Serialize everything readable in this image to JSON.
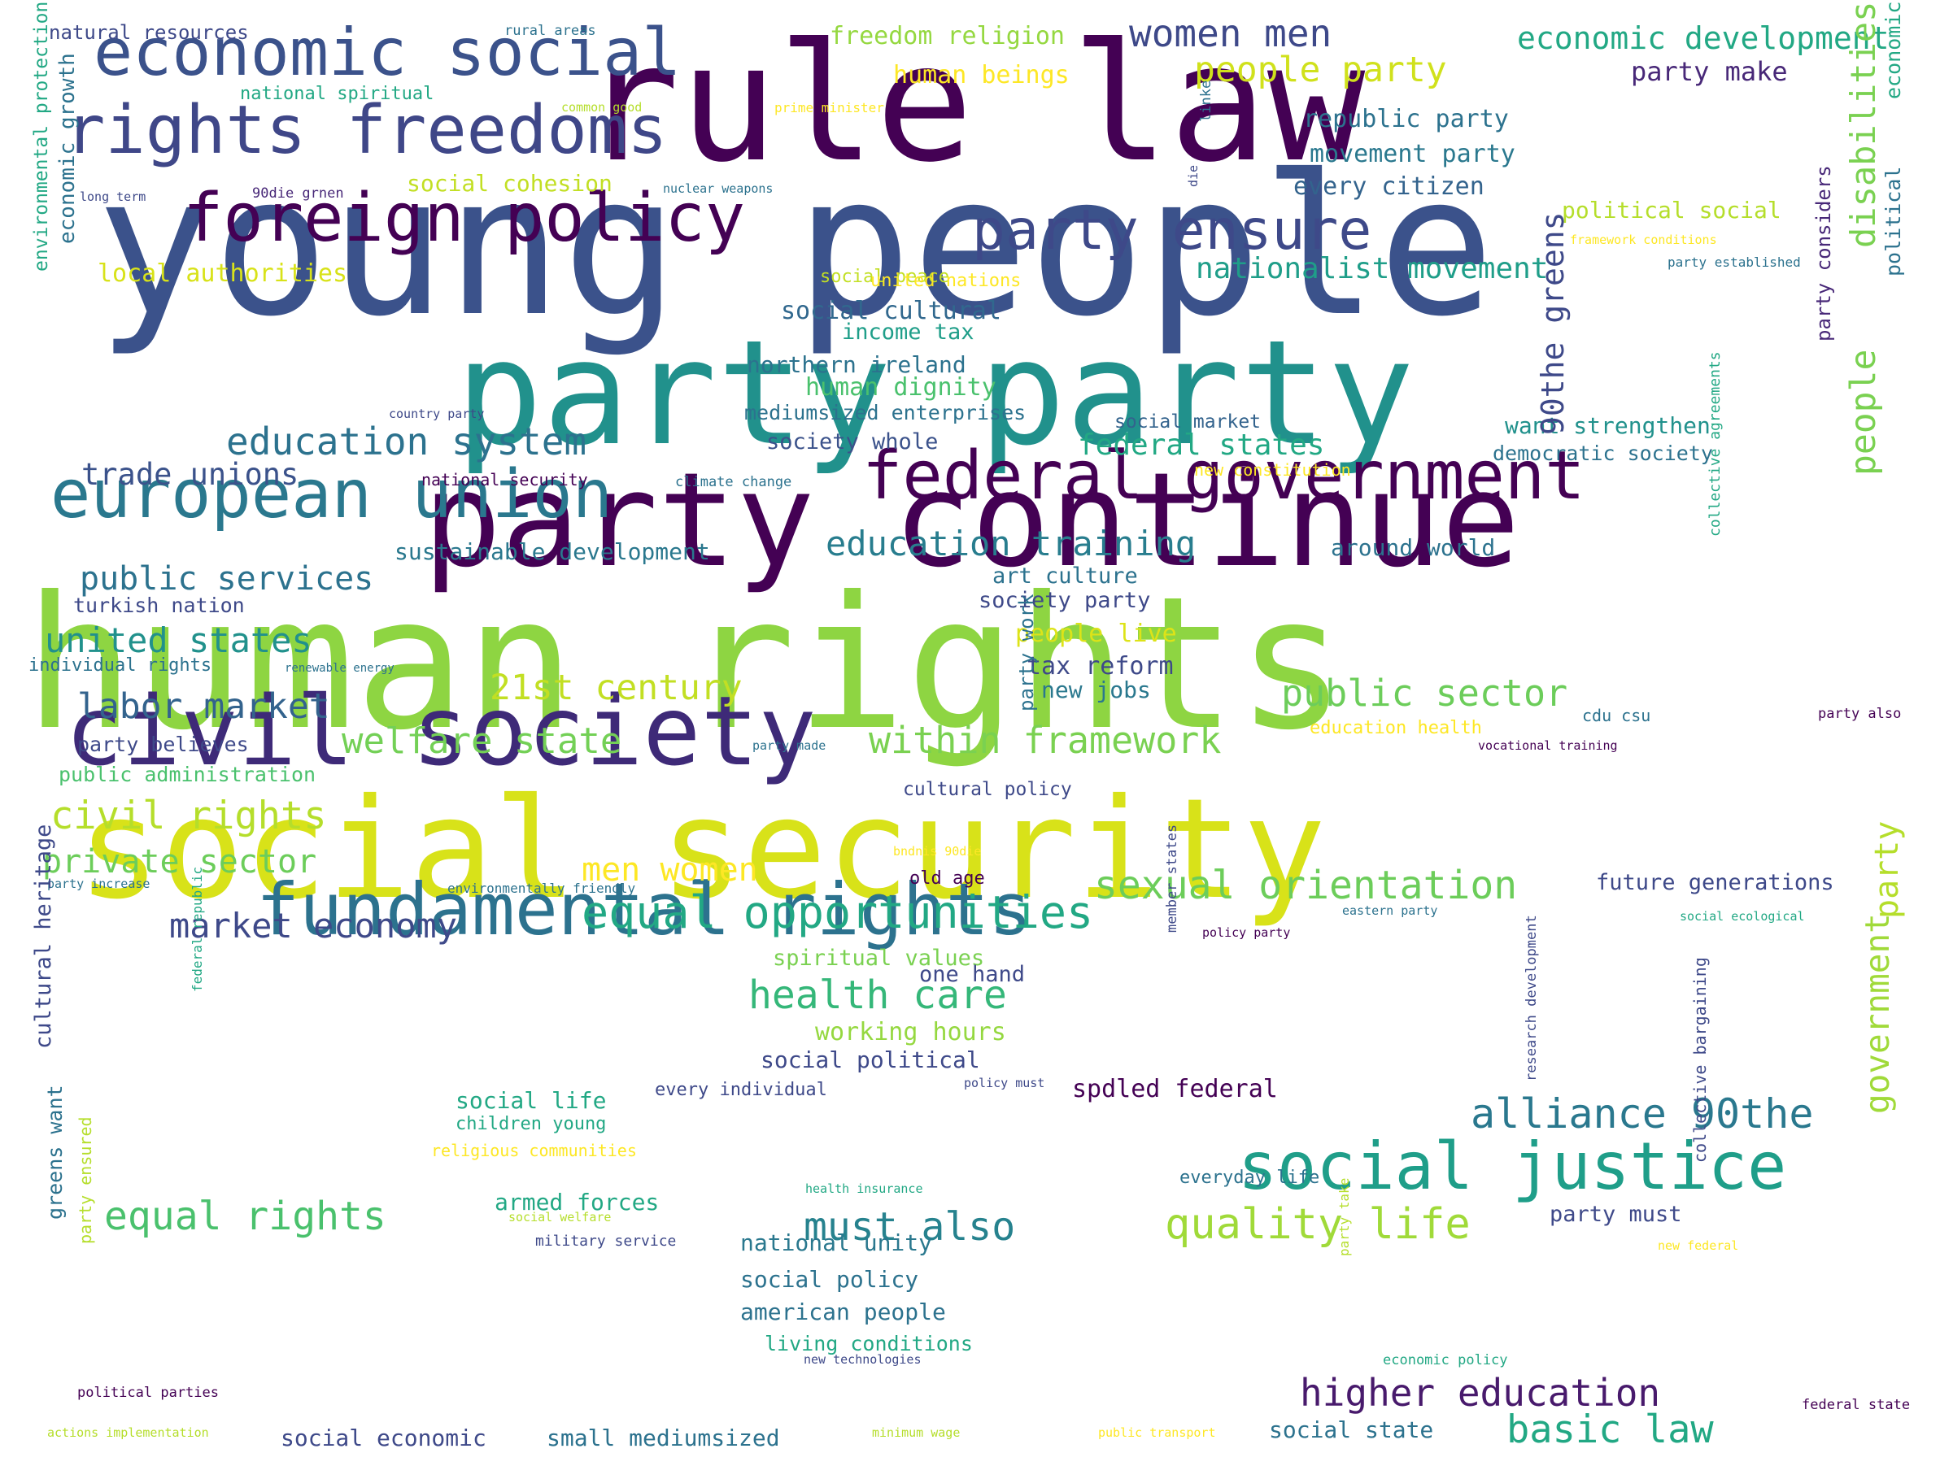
{
  "palette": [
    "#440154",
    "#482475",
    "#414487",
    "#355f8d",
    "#2a788e",
    "#21918c",
    "#22a884",
    "#44bf70",
    "#7ad151",
    "#bddf26",
    "#fde725"
  ],
  "words": [
    {
      "t": "young people",
      "c": "#3b528b"
    },
    {
      "t": "human rights",
      "c": "#8ed542"
    },
    {
      "t": "social security",
      "c": "#d8e219"
    },
    {
      "t": "rule law",
      "c": "#440154"
    },
    {
      "t": "party party",
      "c": "#21918c"
    },
    {
      "t": "party continue",
      "c": "#440154"
    },
    {
      "t": "civil society",
      "c": "#3e2a78"
    },
    {
      "t": "fundamental rights",
      "c": "#2c728e"
    },
    {
      "t": "rights freedoms",
      "c": "#3f4788"
    },
    {
      "t": "economic social",
      "c": "#3b528b"
    },
    {
      "t": "foreign policy",
      "c": "#440154"
    },
    {
      "t": "european union",
      "c": "#2a788e"
    },
    {
      "t": "federal government",
      "c": "#440154"
    },
    {
      "t": "party ensure",
      "c": "#3e4989"
    },
    {
      "t": "social justice",
      "c": "#1f9e89"
    },
    {
      "t": "education system",
      "c": "#2c728e"
    },
    {
      "t": "welfare state",
      "c": "#73d056"
    },
    {
      "t": "within framework",
      "c": "#7ad151"
    },
    {
      "t": "21st century",
      "c": "#c2df23"
    },
    {
      "t": "equal opportunities",
      "c": "#22a884"
    },
    {
      "t": "market economy",
      "c": "#3e4989"
    },
    {
      "t": "sexual orientation",
      "c": "#6ccd5a"
    },
    {
      "t": "alliance 90the",
      "c": "#2a788e"
    },
    {
      "t": "quality life",
      "c": "#a0da39"
    },
    {
      "t": "equal rights",
      "c": "#4ac16d"
    },
    {
      "t": "must also",
      "c": "#26828e"
    },
    {
      "t": "higher education",
      "c": "#481a6c"
    },
    {
      "t": "basic law",
      "c": "#22a884"
    },
    {
      "t": "public sector",
      "c": "#6ccd5a"
    },
    {
      "t": "public services",
      "c": "#2c728e"
    },
    {
      "t": "united states",
      "c": "#21918c"
    },
    {
      "t": "labor market",
      "c": "#33638d"
    },
    {
      "t": "civil rights",
      "c": "#b5de2b"
    },
    {
      "t": "private sector",
      "c": "#6ccd5a"
    },
    {
      "t": "health care",
      "c": "#35b779"
    },
    {
      "t": "men women",
      "c": "#fde725"
    },
    {
      "t": "education training",
      "c": "#287d8e"
    },
    {
      "t": "trade unions",
      "c": "#3b528b"
    },
    {
      "t": "women men",
      "c": "#3e4989"
    },
    {
      "t": "people party",
      "c": "#d0e11c"
    },
    {
      "t": "economic development",
      "c": "#22a884"
    },
    {
      "t": "freedom religion",
      "c": "#95d840"
    },
    {
      "t": "human beings",
      "c": "#fde725"
    },
    {
      "t": "party make",
      "c": "#482878"
    },
    {
      "t": "republic party",
      "c": "#2c728e"
    },
    {
      "t": "movement party",
      "c": "#2a788e"
    },
    {
      "t": "every citizen",
      "c": "#33638d"
    },
    {
      "t": "nationalist movement",
      "c": "#1f9e89"
    },
    {
      "t": "federal states",
      "c": "#22a884"
    },
    {
      "t": "want strengthen",
      "c": "#21918c"
    },
    {
      "t": "democratic society",
      "c": "#2c728e"
    },
    {
      "t": "social cohesion",
      "c": "#c2df23"
    },
    {
      "t": "local authorities",
      "c": "#d8e219"
    },
    {
      "t": "political social",
      "c": "#b5de2b"
    },
    {
      "t": "social cultural",
      "c": "#31688e"
    },
    {
      "t": "income tax",
      "c": "#1f9e89"
    },
    {
      "t": "northern ireland",
      "c": "#2c728e"
    },
    {
      "t": "human dignity",
      "c": "#4ac16d"
    },
    {
      "t": "mediumsized enterprises",
      "c": "#2c728e"
    },
    {
      "t": "society whole",
      "c": "#3b528b"
    },
    {
      "t": "social market",
      "c": "#33638d"
    },
    {
      "t": "sustainable development",
      "c": "#2a788e"
    },
    {
      "t": "around world",
      "c": "#2c728e"
    },
    {
      "t": "art culture",
      "c": "#2c728e"
    },
    {
      "t": "society party",
      "c": "#3e4989"
    },
    {
      "t": "people live",
      "c": "#dde318"
    },
    {
      "t": "tax reform",
      "c": "#3e4989"
    },
    {
      "t": "new jobs",
      "c": "#2a788e"
    },
    {
      "t": "turkish nation",
      "c": "#3e4989"
    },
    {
      "t": "individual rights",
      "c": "#2c728e"
    },
    {
      "t": "party believes",
      "c": "#3e4989"
    },
    {
      "t": "public administration",
      "c": "#4ac16d"
    },
    {
      "t": "cultural policy",
      "c": "#3e4989"
    },
    {
      "t": "future generations",
      "c": "#3e4989"
    },
    {
      "t": "old age",
      "c": "#440154"
    },
    {
      "t": "spiritual values",
      "c": "#7ad151"
    },
    {
      "t": "one hand",
      "c": "#3e4989"
    },
    {
      "t": "working hours",
      "c": "#95d840"
    },
    {
      "t": "social political",
      "c": "#3e4989"
    },
    {
      "t": "social life",
      "c": "#22a884"
    },
    {
      "t": "every individual",
      "c": "#3e4989"
    },
    {
      "t": "spdled federal",
      "c": "#440154"
    },
    {
      "t": "children young",
      "c": "#22a884"
    },
    {
      "t": "everyday life",
      "c": "#2c728e"
    },
    {
      "t": "armed forces",
      "c": "#22a884"
    },
    {
      "t": "national unity",
      "c": "#2a788e"
    },
    {
      "t": "party must",
      "c": "#3e4989"
    },
    {
      "t": "social policy",
      "c": "#2c728e"
    },
    {
      "t": "american people",
      "c": "#2c728e"
    },
    {
      "t": "living conditions",
      "c": "#22a884"
    },
    {
      "t": "social economic",
      "c": "#3e4989"
    },
    {
      "t": "small mediumsized",
      "c": "#2c728e"
    },
    {
      "t": "social state",
      "c": "#2c728e"
    },
    {
      "t": "natural resources",
      "c": "#3e4989"
    },
    {
      "t": "rural areas",
      "c": "#2c728e"
    },
    {
      "t": "national spiritual",
      "c": "#22a884"
    },
    {
      "t": "common good",
      "c": "#b5de2b"
    },
    {
      "t": "prime minister",
      "c": "#fde725"
    },
    {
      "t": "long term",
      "c": "#3e4989"
    },
    {
      "t": "90die grnen",
      "c": "#482878"
    },
    {
      "t": "nuclear weapons",
      "c": "#2c728e"
    },
    {
      "t": "social peace",
      "c": "#c2df23"
    },
    {
      "t": "united nations",
      "c": "#fde725"
    },
    {
      "t": "party established",
      "c": "#2c728e"
    },
    {
      "t": "country party",
      "c": "#3e4989"
    },
    {
      "t": "national security",
      "c": "#440154"
    },
    {
      "t": "climate change",
      "c": "#2c728e"
    },
    {
      "t": "new constitution",
      "c": "#fde725"
    },
    {
      "t": "renewable energy",
      "c": "#2c728e"
    },
    {
      "t": "education health",
      "c": "#fde725"
    },
    {
      "t": "cdu csu",
      "c": "#2c728e"
    },
    {
      "t": "party made",
      "c": "#2c728e"
    },
    {
      "t": "vocational training",
      "c": "#440154"
    },
    {
      "t": "party also",
      "c": "#440154"
    },
    {
      "t": "bndnis 90die",
      "c": "#fde725"
    },
    {
      "t": "party increase",
      "c": "#2c728e"
    },
    {
      "t": "environmentally friendly",
      "c": "#2c728e"
    },
    {
      "t": "eastern party",
      "c": "#2c728e"
    },
    {
      "t": "policy party",
      "c": "#440154"
    },
    {
      "t": "social ecological",
      "c": "#22a884"
    },
    {
      "t": "policy must",
      "c": "#3e4989"
    },
    {
      "t": "religious communities",
      "c": "#fde725"
    },
    {
      "t": "health insurance",
      "c": "#22a884"
    },
    {
      "t": "social welfare",
      "c": "#b5de2b"
    },
    {
      "t": "military service",
      "c": "#3e4989"
    },
    {
      "t": "new federal",
      "c": "#fde725"
    },
    {
      "t": "political parties",
      "c": "#440154"
    },
    {
      "t": "new technologies",
      "c": "#3e4989"
    },
    {
      "t": "economic policy",
      "c": "#22a884"
    },
    {
      "t": "actions implementation",
      "c": "#b5de2b"
    },
    {
      "t": "minimum wage",
      "c": "#b5de2b"
    },
    {
      "t": "public transport",
      "c": "#fde725"
    },
    {
      "t": "federal state",
      "c": "#440154"
    },
    {
      "t": "framework conditions",
      "c": "#fde725"
    },
    {
      "t": "disabilities",
      "c": "#7ad151"
    },
    {
      "t": "90the greens",
      "c": "#3e4989"
    },
    {
      "t": "people",
      "c": "#7ad151"
    },
    {
      "t": "party",
      "c": "#b5de2b"
    },
    {
      "t": "government",
      "c": "#a0da39"
    },
    {
      "t": "economic",
      "c": "#22a884"
    },
    {
      "t": "political",
      "c": "#2c728e"
    },
    {
      "t": "party considers",
      "c": "#482878"
    },
    {
      "t": "collective agreements",
      "c": "#22a884"
    },
    {
      "t": "research development",
      "c": "#3e4989"
    },
    {
      "t": "collective bargaining",
      "c": "#3e4989"
    },
    {
      "t": "party take",
      "c": "#b5de2b"
    },
    {
      "t": "member states",
      "c": "#3e4989"
    },
    {
      "t": "party work",
      "c": "#2c728e"
    },
    {
      "t": "linke",
      "c": "#2c728e"
    },
    {
      "t": "die",
      "c": "#3e4989"
    },
    {
      "t": "environmental protection",
      "c": "#22a884"
    },
    {
      "t": "economic growth",
      "c": "#2c728e"
    },
    {
      "t": "cultural heritage",
      "c": "#3e4989"
    },
    {
      "t": "greens want",
      "c": "#2c728e"
    },
    {
      "t": "party ensured",
      "c": "#b5de2b"
    },
    {
      "t": "federal republic",
      "c": "#22a884"
    }
  ]
}
